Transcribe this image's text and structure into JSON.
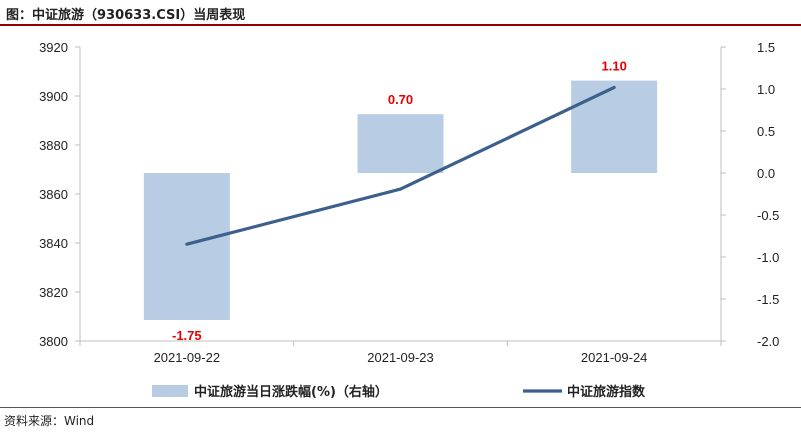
{
  "header": {
    "title": "图：中证旅游（930633.CSI）当周表现"
  },
  "footer": {
    "source": "资料来源：Wind"
  },
  "colors": {
    "bar": "#b8cce4",
    "line": "#3c5f8c",
    "label": "#e60000",
    "axis": "#bfbfbf",
    "title_rule": "#8b0000"
  },
  "chart_data": {
    "type": "bar+line",
    "categories": [
      "2021-09-22",
      "2021-09-23",
      "2021-09-24"
    ],
    "series": [
      {
        "name": "中证旅游当日涨跌幅(%)（右轴）",
        "type": "bar",
        "axis": "right",
        "values": [
          -1.75,
          0.7,
          1.1
        ],
        "labels": [
          "-1.75",
          "0.70",
          "1.10"
        ]
      },
      {
        "name": "中证旅游指数",
        "type": "line",
        "axis": "left",
        "values": [
          3839.5,
          3862,
          3903.5
        ]
      }
    ],
    "y_left": {
      "min": 3800,
      "max": 3920,
      "ticks": [
        "3800",
        "3820",
        "3840",
        "3860",
        "3880",
        "3900",
        "3920"
      ]
    },
    "y_right": {
      "min": -2.0,
      "max": 1.5,
      "ticks": [
        "-2.0",
        "-1.5",
        "-1.0",
        "-0.5",
        "0.0",
        "0.5",
        "1.0",
        "1.5"
      ]
    },
    "grid": false,
    "legend": "bottom"
  }
}
